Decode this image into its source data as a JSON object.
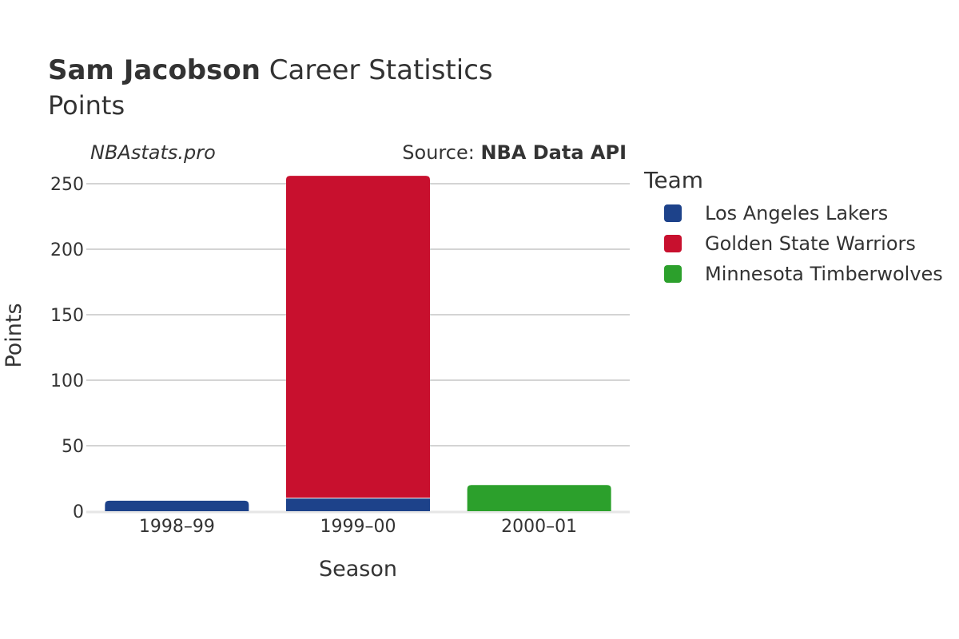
{
  "header": {
    "player": "Sam Jacobson",
    "title_rest": "Career Statistics",
    "subtitle": "Points"
  },
  "branding": "NBAstats.pro",
  "source": {
    "prefix": "Source: ",
    "name": "NBA Data API"
  },
  "legend": {
    "title": "Team",
    "items": [
      {
        "label": "Los Angeles Lakers",
        "color": "#1D428A"
      },
      {
        "label": "Golden State Warriors",
        "color": "#C8102E"
      },
      {
        "label": "Minnesota Timberwolves",
        "color": "#2CA02C"
      }
    ]
  },
  "chart_data": {
    "type": "bar",
    "stacked": true,
    "title": "Sam Jacobson Career Statistics",
    "subtitle": "Points",
    "xlabel": "Season",
    "ylabel": "Points",
    "categories": [
      "1998–99",
      "1999–00",
      "2000–01"
    ],
    "yticks": [
      0,
      50,
      100,
      150,
      200,
      250
    ],
    "ylim": [
      0,
      260
    ],
    "series": [
      {
        "name": "Los Angeles Lakers",
        "color": "#1D428A",
        "values": [
          8,
          10,
          0
        ]
      },
      {
        "name": "Golden State Warriors",
        "color": "#C8102E",
        "values": [
          0,
          246,
          0
        ]
      },
      {
        "name": "Minnesota Timberwolves",
        "color": "#2CA02C",
        "values": [
          0,
          0,
          20
        ]
      }
    ],
    "grid": true,
    "legend_position": "right"
  }
}
